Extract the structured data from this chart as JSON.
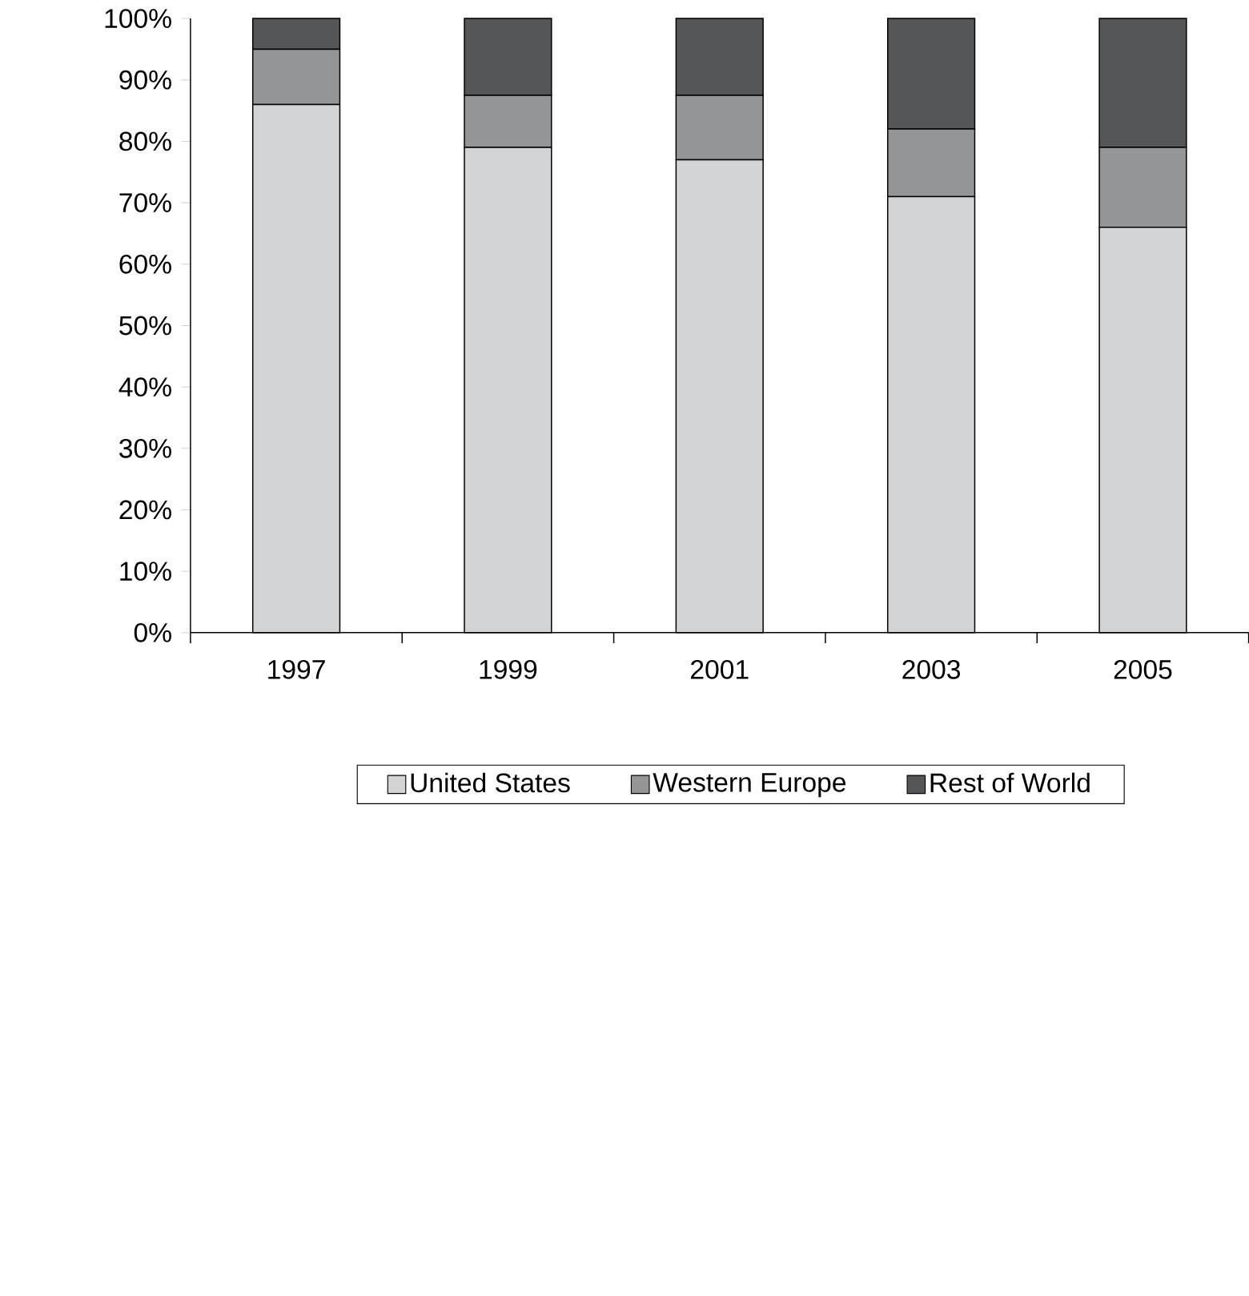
{
  "chart_data": {
    "type": "bar",
    "stacked": true,
    "categories": [
      "1997",
      "1999",
      "2001",
      "2003",
      "2005"
    ],
    "series": [
      {
        "name": "United States",
        "color": "#d3d4d5",
        "values": [
          86,
          79,
          77,
          71,
          66
        ]
      },
      {
        "name": "Western Europe",
        "color": "#949597",
        "values": [
          9,
          8.5,
          10.5,
          11,
          13
        ]
      },
      {
        "name": "Rest of World",
        "color": "#555658",
        "values": [
          5,
          12.5,
          12.5,
          18,
          21
        ]
      }
    ],
    "ylim": [
      0,
      100
    ],
    "yticks": [
      {
        "value": 0,
        "label": "0%"
      },
      {
        "value": 10,
        "label": "10%"
      },
      {
        "value": 20,
        "label": "20%"
      },
      {
        "value": 30,
        "label": "30%"
      },
      {
        "value": 40,
        "label": "40%"
      },
      {
        "value": 50,
        "label": "50%"
      },
      {
        "value": 60,
        "label": "60%"
      },
      {
        "value": 70,
        "label": "70%"
      },
      {
        "value": 80,
        "label": "80%"
      },
      {
        "value": 90,
        "label": "90%"
      },
      {
        "value": 100,
        "label": "100%"
      }
    ],
    "legend": "bottom",
    "grid": false
  }
}
